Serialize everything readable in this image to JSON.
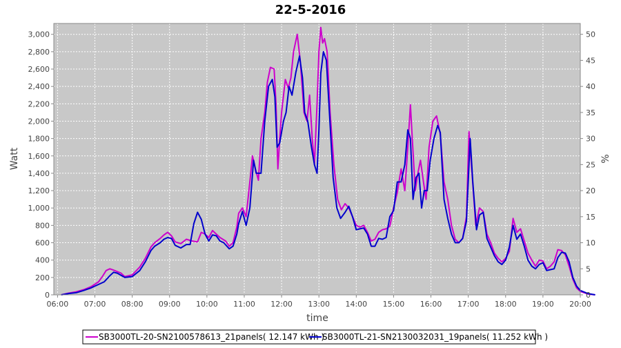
{
  "chart_data": {
    "type": "line",
    "title": "22-5-2016",
    "xlabel": "time",
    "ylabel": "Watt",
    "y2label": "%",
    "x_ticks": [
      "06:00",
      "07:00",
      "08:00",
      "09:00",
      "10:00",
      "11:00",
      "12:00",
      "13:00",
      "14:00",
      "15:00",
      "16:00",
      "17:00",
      "18:00",
      "19:00",
      "20:00"
    ],
    "x_range_hours": [
      5.9,
      20.0
    ],
    "y_ticks": [
      "0",
      "200",
      "400",
      "600",
      "800",
      "1,000",
      "1,200",
      "1,400",
      "1,600",
      "1,800",
      "2,000",
      "2,200",
      "2,400",
      "2,600",
      "2,800",
      "3,000"
    ],
    "ylim": [
      0,
      3125
    ],
    "y2_ticks": [
      "0",
      "5",
      "10",
      "15",
      "20",
      "25",
      "30",
      "35",
      "40",
      "45",
      "50"
    ],
    "y2lim": [
      0,
      52.08
    ],
    "grid": true,
    "legend_position": "bottom",
    "series": [
      {
        "name": "SB3000TL-20-SN2100578613_21panels( 12.147 kWh )",
        "color": "#cc00cc",
        "points": [
          [
            6.1,
            0
          ],
          [
            6.3,
            20
          ],
          [
            6.5,
            35
          ],
          [
            6.7,
            60
          ],
          [
            6.9,
            95
          ],
          [
            7.1,
            150
          ],
          [
            7.2,
            210
          ],
          [
            7.3,
            280
          ],
          [
            7.4,
            300
          ],
          [
            7.5,
            285
          ],
          [
            7.7,
            250
          ],
          [
            7.8,
            210
          ],
          [
            8.0,
            230
          ],
          [
            8.2,
            320
          ],
          [
            8.35,
            420
          ],
          [
            8.5,
            550
          ],
          [
            8.6,
            600
          ],
          [
            8.75,
            650
          ],
          [
            8.85,
            690
          ],
          [
            8.95,
            720
          ],
          [
            9.05,
            680
          ],
          [
            9.15,
            610
          ],
          [
            9.3,
            590
          ],
          [
            9.45,
            640
          ],
          [
            9.6,
            620
          ],
          [
            9.75,
            610
          ],
          [
            9.85,
            720
          ],
          [
            9.95,
            700
          ],
          [
            10.05,
            660
          ],
          [
            10.15,
            740
          ],
          [
            10.25,
            700
          ],
          [
            10.35,
            660
          ],
          [
            10.5,
            620
          ],
          [
            10.6,
            560
          ],
          [
            10.7,
            600
          ],
          [
            10.8,
            780
          ],
          [
            10.85,
            940
          ],
          [
            10.95,
            1000
          ],
          [
            11.05,
            900
          ],
          [
            11.15,
            1300
          ],
          [
            11.22,
            1600
          ],
          [
            11.3,
            1450
          ],
          [
            11.38,
            1320
          ],
          [
            11.45,
            1800
          ],
          [
            11.55,
            2100
          ],
          [
            11.62,
            2450
          ],
          [
            11.7,
            2620
          ],
          [
            11.8,
            2600
          ],
          [
            11.85,
            2200
          ],
          [
            11.9,
            1450
          ],
          [
            11.95,
            1800
          ],
          [
            12.0,
            2100
          ],
          [
            12.1,
            2480
          ],
          [
            12.18,
            2380
          ],
          [
            12.25,
            2500
          ],
          [
            12.32,
            2800
          ],
          [
            12.42,
            3000
          ],
          [
            12.5,
            2700
          ],
          [
            12.55,
            2400
          ],
          [
            12.6,
            2100
          ],
          [
            12.68,
            2000
          ],
          [
            12.75,
            2300
          ],
          [
            12.82,
            1800
          ],
          [
            12.88,
            1500
          ],
          [
            12.95,
            2200
          ],
          [
            13.0,
            2800
          ],
          [
            13.05,
            3080
          ],
          [
            13.1,
            2900
          ],
          [
            13.15,
            2950
          ],
          [
            13.22,
            2800
          ],
          [
            13.3,
            2100
          ],
          [
            13.4,
            1500
          ],
          [
            13.5,
            1100
          ],
          [
            13.6,
            980
          ],
          [
            13.7,
            1050
          ],
          [
            13.8,
            1000
          ],
          [
            13.9,
            900
          ],
          [
            14.0,
            800
          ],
          [
            14.1,
            780
          ],
          [
            14.2,
            800
          ],
          [
            14.3,
            720
          ],
          [
            14.4,
            620
          ],
          [
            14.5,
            640
          ],
          [
            14.6,
            720
          ],
          [
            14.7,
            750
          ],
          [
            14.8,
            760
          ],
          [
            14.9,
            790
          ],
          [
            15.0,
            1000
          ],
          [
            15.1,
            1180
          ],
          [
            15.2,
            1450
          ],
          [
            15.3,
            1200
          ],
          [
            15.38,
            1700
          ],
          [
            15.45,
            2190
          ],
          [
            15.5,
            1800
          ],
          [
            15.58,
            1200
          ],
          [
            15.65,
            1400
          ],
          [
            15.72,
            1550
          ],
          [
            15.8,
            1300
          ],
          [
            15.87,
            1100
          ],
          [
            15.95,
            1700
          ],
          [
            16.05,
            2000
          ],
          [
            16.15,
            2060
          ],
          [
            16.25,
            1850
          ],
          [
            16.35,
            1300
          ],
          [
            16.45,
            1100
          ],
          [
            16.55,
            800
          ],
          [
            16.65,
            640
          ],
          [
            16.75,
            600
          ],
          [
            16.85,
            650
          ],
          [
            16.95,
            900
          ],
          [
            17.02,
            1880
          ],
          [
            17.1,
            1400
          ],
          [
            17.2,
            800
          ],
          [
            17.3,
            1000
          ],
          [
            17.4,
            960
          ],
          [
            17.5,
            700
          ],
          [
            17.6,
            600
          ],
          [
            17.7,
            480
          ],
          [
            17.8,
            420
          ],
          [
            17.9,
            380
          ],
          [
            18.0,
            420
          ],
          [
            18.1,
            500
          ],
          [
            18.2,
            880
          ],
          [
            18.3,
            720
          ],
          [
            18.4,
            760
          ],
          [
            18.5,
            620
          ],
          [
            18.6,
            480
          ],
          [
            18.7,
            400
          ],
          [
            18.8,
            330
          ],
          [
            18.9,
            400
          ],
          [
            19.0,
            390
          ],
          [
            19.1,
            300
          ],
          [
            19.2,
            330
          ],
          [
            19.3,
            380
          ],
          [
            19.4,
            520
          ],
          [
            19.5,
            510
          ],
          [
            19.6,
            460
          ],
          [
            19.7,
            330
          ],
          [
            19.8,
            180
          ],
          [
            19.9,
            80
          ],
          [
            20.0,
            40
          ],
          [
            20.2,
            10
          ],
          [
            20.4,
            0
          ]
        ]
      },
      {
        "name": "SB3000TL-21-SN2130032031_19panels( 11.252 kWh )",
        "color": "#0000cc",
        "points": [
          [
            6.1,
            0
          ],
          [
            6.3,
            15
          ],
          [
            6.5,
            25
          ],
          [
            6.7,
            50
          ],
          [
            6.9,
            80
          ],
          [
            7.1,
            120
          ],
          [
            7.25,
            150
          ],
          [
            7.4,
            220
          ],
          [
            7.5,
            260
          ],
          [
            7.6,
            250
          ],
          [
            7.8,
            200
          ],
          [
            8.0,
            210
          ],
          [
            8.2,
            280
          ],
          [
            8.35,
            380
          ],
          [
            8.5,
            510
          ],
          [
            8.6,
            560
          ],
          [
            8.75,
            600
          ],
          [
            8.85,
            640
          ],
          [
            8.95,
            660
          ],
          [
            9.05,
            650
          ],
          [
            9.15,
            570
          ],
          [
            9.3,
            540
          ],
          [
            9.45,
            580
          ],
          [
            9.55,
            580
          ],
          [
            9.65,
            820
          ],
          [
            9.75,
            950
          ],
          [
            9.85,
            870
          ],
          [
            9.95,
            700
          ],
          [
            10.05,
            620
          ],
          [
            10.15,
            690
          ],
          [
            10.25,
            680
          ],
          [
            10.35,
            620
          ],
          [
            10.45,
            600
          ],
          [
            10.6,
            530
          ],
          [
            10.7,
            560
          ],
          [
            10.8,
            700
          ],
          [
            10.85,
            820
          ],
          [
            10.95,
            960
          ],
          [
            11.05,
            800
          ],
          [
            11.15,
            1000
          ],
          [
            11.25,
            1550
          ],
          [
            11.32,
            1400
          ],
          [
            11.45,
            1400
          ],
          [
            11.55,
            2000
          ],
          [
            11.65,
            2400
          ],
          [
            11.75,
            2480
          ],
          [
            11.82,
            2280
          ],
          [
            11.88,
            1700
          ],
          [
            11.95,
            1750
          ],
          [
            12.05,
            2000
          ],
          [
            12.12,
            2100
          ],
          [
            12.2,
            2400
          ],
          [
            12.28,
            2300
          ],
          [
            12.38,
            2560
          ],
          [
            12.48,
            2750
          ],
          [
            12.56,
            2500
          ],
          [
            12.62,
            2100
          ],
          [
            12.7,
            2000
          ],
          [
            12.8,
            1700
          ],
          [
            12.88,
            1500
          ],
          [
            12.95,
            1400
          ],
          [
            13.0,
            1900
          ],
          [
            13.05,
            2550
          ],
          [
            13.12,
            2800
          ],
          [
            13.2,
            2700
          ],
          [
            13.28,
            2100
          ],
          [
            13.38,
            1350
          ],
          [
            13.48,
            1000
          ],
          [
            13.58,
            880
          ],
          [
            13.7,
            950
          ],
          [
            13.8,
            1020
          ],
          [
            13.9,
            900
          ],
          [
            14.0,
            750
          ],
          [
            14.1,
            760
          ],
          [
            14.2,
            770
          ],
          [
            14.3,
            700
          ],
          [
            14.4,
            560
          ],
          [
            14.5,
            560
          ],
          [
            14.6,
            650
          ],
          [
            14.7,
            640
          ],
          [
            14.8,
            660
          ],
          [
            14.9,
            900
          ],
          [
            15.0,
            970
          ],
          [
            15.1,
            1300
          ],
          [
            15.2,
            1300
          ],
          [
            15.3,
            1500
          ],
          [
            15.38,
            1900
          ],
          [
            15.45,
            1800
          ],
          [
            15.52,
            1100
          ],
          [
            15.6,
            1350
          ],
          [
            15.68,
            1400
          ],
          [
            15.75,
            1000
          ],
          [
            15.82,
            1200
          ],
          [
            15.9,
            1200
          ],
          [
            15.98,
            1550
          ],
          [
            16.08,
            1800
          ],
          [
            16.18,
            1950
          ],
          [
            16.25,
            1870
          ],
          [
            16.35,
            1100
          ],
          [
            16.45,
            880
          ],
          [
            16.55,
            700
          ],
          [
            16.65,
            600
          ],
          [
            16.75,
            600
          ],
          [
            16.85,
            650
          ],
          [
            16.95,
            850
          ],
          [
            17.05,
            1800
          ],
          [
            17.12,
            1300
          ],
          [
            17.22,
            750
          ],
          [
            17.3,
            920
          ],
          [
            17.4,
            950
          ],
          [
            17.5,
            650
          ],
          [
            17.6,
            550
          ],
          [
            17.7,
            450
          ],
          [
            17.8,
            380
          ],
          [
            17.9,
            350
          ],
          [
            18.0,
            400
          ],
          [
            18.1,
            550
          ],
          [
            18.2,
            800
          ],
          [
            18.3,
            640
          ],
          [
            18.4,
            700
          ],
          [
            18.5,
            560
          ],
          [
            18.6,
            400
          ],
          [
            18.7,
            330
          ],
          [
            18.8,
            300
          ],
          [
            18.9,
            350
          ],
          [
            19.0,
            370
          ],
          [
            19.1,
            280
          ],
          [
            19.2,
            290
          ],
          [
            19.3,
            300
          ],
          [
            19.4,
            430
          ],
          [
            19.5,
            490
          ],
          [
            19.6,
            480
          ],
          [
            19.7,
            380
          ],
          [
            19.8,
            200
          ],
          [
            19.9,
            100
          ],
          [
            20.0,
            50
          ],
          [
            20.2,
            15
          ],
          [
            20.4,
            0
          ]
        ]
      }
    ]
  }
}
